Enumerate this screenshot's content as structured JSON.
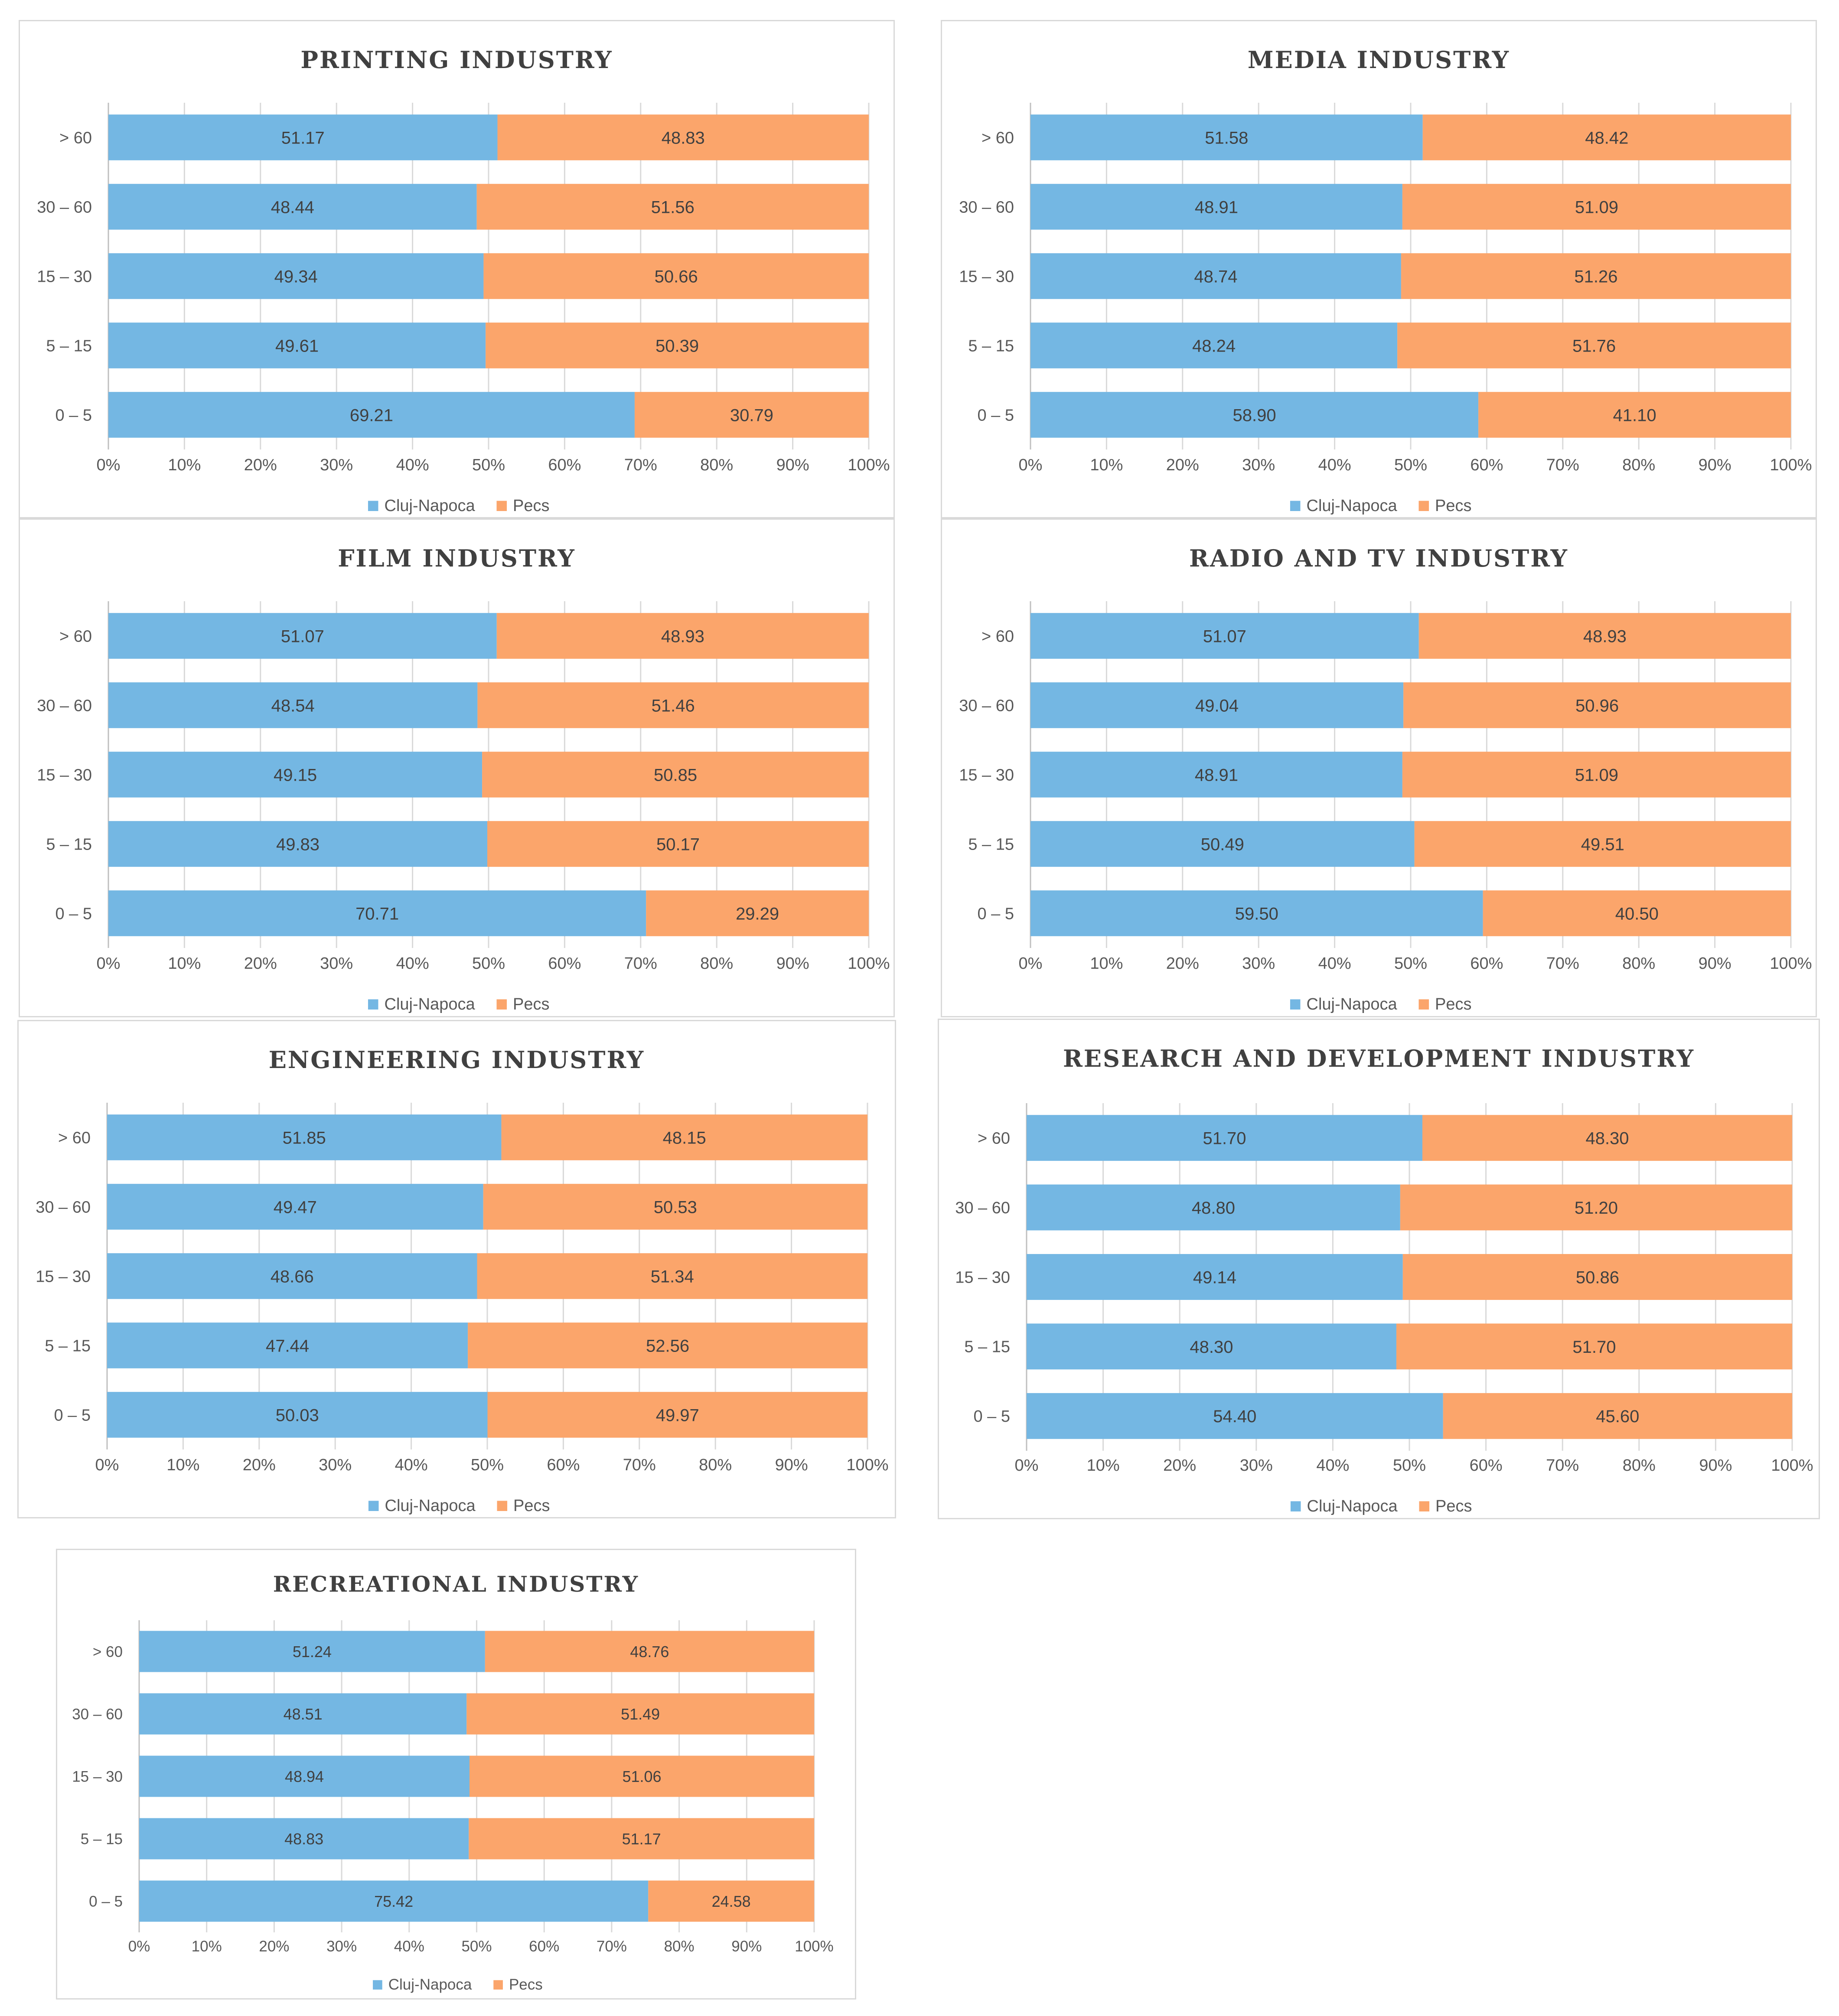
{
  "colors": {
    "cluj": "#74b7e3",
    "pecs": "#fba56b",
    "grid": "#d9d9d9",
    "axis": "#bfbfbf"
  },
  "chart_data": [
    {
      "type": "bar",
      "orientation": "horizontal-stacked-100",
      "title": "PRINTING INDUSTRY",
      "categories": [
        "> 60",
        "30 – 60",
        "15 – 30",
        "5 – 15",
        "0 – 5"
      ],
      "series": [
        {
          "name": "Cluj-Napoca",
          "values": [
            51.17,
            48.44,
            49.34,
            49.61,
            69.21
          ],
          "labels": [
            "51.17",
            "48.44",
            "49.34",
            "49.61",
            "69.21"
          ]
        },
        {
          "name": "Pecs",
          "values": [
            48.83,
            51.56,
            50.66,
            50.39,
            30.79
          ],
          "labels": [
            "48.83",
            "51.56",
            "50.66",
            "50.39",
            "30.79"
          ]
        }
      ],
      "xticks": [
        "0%",
        "10%",
        "20%",
        "30%",
        "40%",
        "50%",
        "60%",
        "70%",
        "80%",
        "90%",
        "100%"
      ],
      "xlim": [
        0,
        100
      ],
      "legend": "bottom"
    },
    {
      "type": "bar",
      "orientation": "horizontal-stacked-100",
      "title": "MEDIA INDUSTRY",
      "categories": [
        "> 60",
        "30 – 60",
        "15 – 30",
        "5 – 15",
        "0 – 5"
      ],
      "series": [
        {
          "name": "Cluj-Napoca",
          "values": [
            51.58,
            48.91,
            48.74,
            48.24,
            58.9
          ],
          "labels": [
            "51.58",
            "48.91",
            "48.74",
            "48.24",
            "58.90"
          ]
        },
        {
          "name": "Pecs",
          "values": [
            48.42,
            51.09,
            51.26,
            51.76,
            41.1
          ],
          "labels": [
            "48.42",
            "51.09",
            "51.26",
            "51.76",
            "41.10"
          ]
        }
      ],
      "xticks": [
        "0%",
        "10%",
        "20%",
        "30%",
        "40%",
        "50%",
        "60%",
        "70%",
        "80%",
        "90%",
        "100%"
      ],
      "xlim": [
        0,
        100
      ],
      "legend": "bottom"
    },
    {
      "type": "bar",
      "orientation": "horizontal-stacked-100",
      "title": "FILM INDUSTRY",
      "categories": [
        "> 60",
        "30 – 60",
        "15 – 30",
        "5 – 15",
        "0 – 5"
      ],
      "series": [
        {
          "name": "Cluj-Napoca",
          "values": [
            51.07,
            48.54,
            49.15,
            49.83,
            70.71
          ],
          "labels": [
            "51.07",
            "48.54",
            "49.15",
            "49.83",
            "70.71"
          ]
        },
        {
          "name": "Pecs",
          "values": [
            48.93,
            51.46,
            50.85,
            50.17,
            29.29
          ],
          "labels": [
            "48.93",
            "51.46",
            "50.85",
            "50.17",
            "29.29"
          ]
        }
      ],
      "xticks": [
        "0%",
        "10%",
        "20%",
        "30%",
        "40%",
        "50%",
        "60%",
        "70%",
        "80%",
        "90%",
        "100%"
      ],
      "xlim": [
        0,
        100
      ],
      "legend": "bottom"
    },
    {
      "type": "bar",
      "orientation": "horizontal-stacked-100",
      "title": "RADIO AND TV INDUSTRY",
      "categories": [
        "> 60",
        "30 – 60",
        "15 – 30",
        "5 – 15",
        "0 – 5"
      ],
      "series": [
        {
          "name": "Cluj-Napoca",
          "values": [
            51.07,
            49.04,
            48.91,
            50.49,
            59.5
          ],
          "labels": [
            "51.07",
            "49.04",
            "48.91",
            "50.49",
            "59.50"
          ]
        },
        {
          "name": "Pecs",
          "values": [
            48.93,
            50.96,
            51.09,
            49.51,
            40.5
          ],
          "labels": [
            "48.93",
            "50.96",
            "51.09",
            "49.51",
            "40.50"
          ]
        }
      ],
      "xticks": [
        "0%",
        "10%",
        "20%",
        "30%",
        "40%",
        "50%",
        "60%",
        "70%",
        "80%",
        "90%",
        "100%"
      ],
      "xlim": [
        0,
        100
      ],
      "legend": "bottom"
    },
    {
      "type": "bar",
      "orientation": "horizontal-stacked-100",
      "title": "ENGINEERING INDUSTRY",
      "categories": [
        "> 60",
        "30 – 60",
        "15 – 30",
        "5 – 15",
        "0 – 5"
      ],
      "series": [
        {
          "name": "Cluj-Napoca",
          "values": [
            51.85,
            49.47,
            48.66,
            47.44,
            50.03
          ],
          "labels": [
            "51.85",
            "49.47",
            "48.66",
            "47.44",
            "50.03"
          ]
        },
        {
          "name": "Pecs",
          "values": [
            48.15,
            50.53,
            51.34,
            52.56,
            49.97
          ],
          "labels": [
            "48.15",
            "50.53",
            "51.34",
            "52.56",
            "49.97"
          ]
        }
      ],
      "xticks": [
        "0%",
        "10%",
        "20%",
        "30%",
        "40%",
        "50%",
        "60%",
        "70%",
        "80%",
        "90%",
        "100%"
      ],
      "xlim": [
        0,
        100
      ],
      "legend": "bottom"
    },
    {
      "type": "bar",
      "orientation": "horizontal-stacked-100",
      "title": "RESEARCH AND DEVELOPMENT INDUSTRY",
      "categories": [
        "> 60",
        "30 – 60",
        "15 – 30",
        "5 – 15",
        "0 – 5"
      ],
      "series": [
        {
          "name": "Cluj-Napoca",
          "values": [
            51.7,
            48.8,
            49.14,
            48.3,
            54.4
          ],
          "labels": [
            "51.70",
            "48.80",
            "49.14",
            "48.30",
            "54.40"
          ]
        },
        {
          "name": "Pecs",
          "values": [
            48.3,
            51.2,
            50.86,
            51.7,
            45.6
          ],
          "labels": [
            "48.30",
            "51.20",
            "50.86",
            "51.70",
            "45.60"
          ]
        }
      ],
      "xticks": [
        "0%",
        "10%",
        "20%",
        "30%",
        "40%",
        "50%",
        "60%",
        "70%",
        "80%",
        "90%",
        "100%"
      ],
      "xlim": [
        0,
        100
      ],
      "legend": "bottom"
    },
    {
      "type": "bar",
      "orientation": "horizontal-stacked-100",
      "title": "RECREATIONAL INDUSTRY",
      "categories": [
        "> 60",
        "30 – 60",
        "15 – 30",
        "5 – 15",
        "0 – 5"
      ],
      "series": [
        {
          "name": "Cluj-Napoca",
          "values": [
            51.24,
            48.51,
            48.94,
            48.83,
            75.42
          ],
          "labels": [
            "51.24",
            "48.51",
            "48.94",
            "48.83",
            "75.42"
          ]
        },
        {
          "name": "Pecs",
          "values": [
            48.76,
            51.49,
            51.06,
            51.17,
            24.58
          ],
          "labels": [
            "48.76",
            "51.49",
            "51.06",
            "51.17",
            "24.58"
          ]
        }
      ],
      "xticks": [
        "0%",
        "10%",
        "20%",
        "30%",
        "40%",
        "50%",
        "60%",
        "70%",
        "80%",
        "90%",
        "100%"
      ],
      "xlim": [
        0,
        100
      ],
      "legend": "bottom"
    }
  ]
}
